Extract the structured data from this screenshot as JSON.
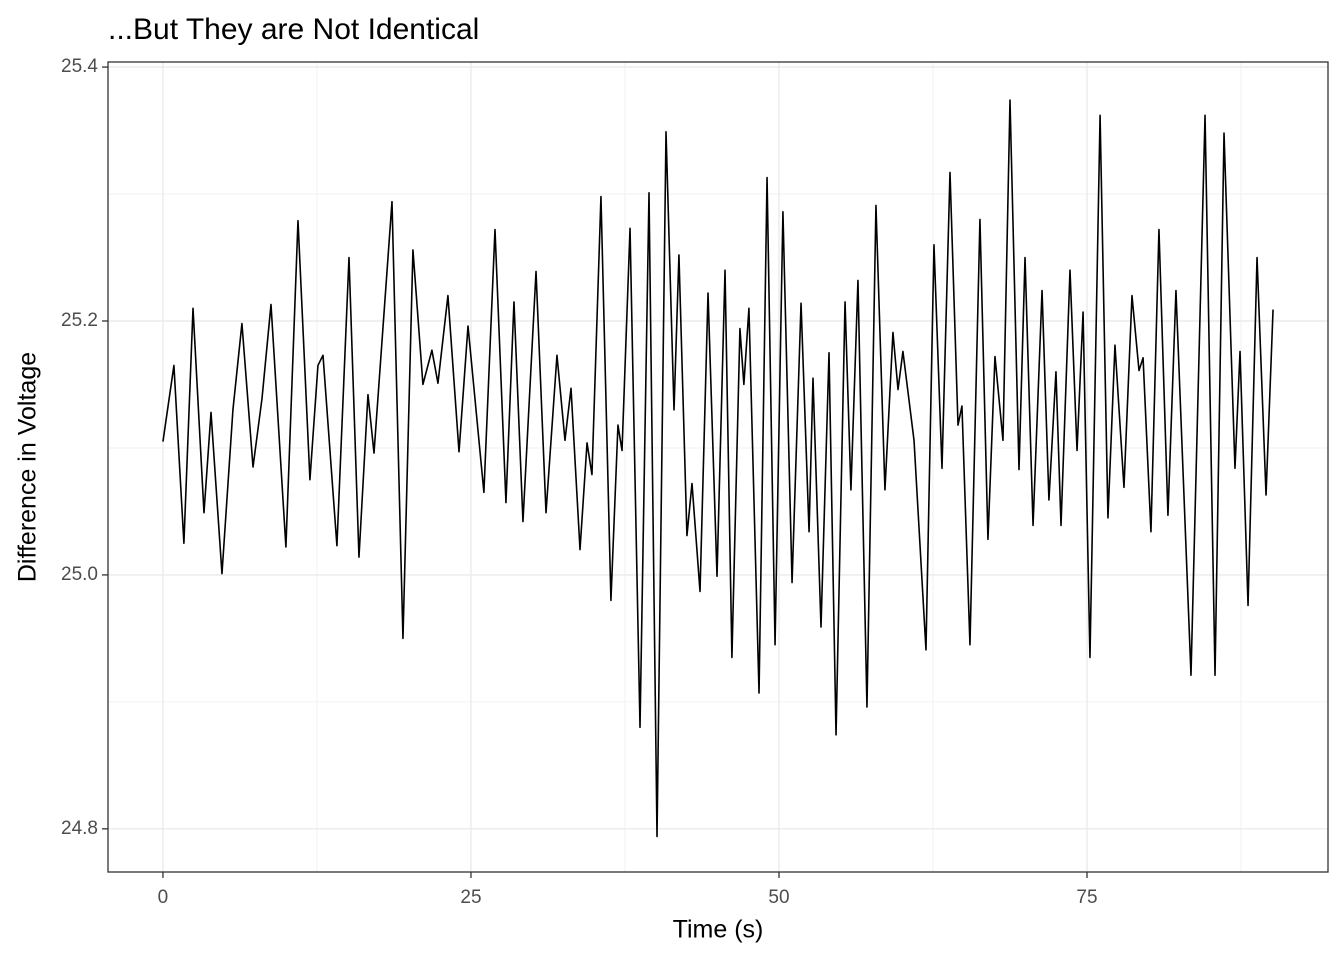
{
  "chart_data": {
    "type": "line",
    "title": "...But They are Not Identical",
    "x_label": "Time (s)",
    "y_label": "Difference in Voltage",
    "xlim": [
      -4.46,
      94.56
    ],
    "ylim": [
      24.766,
      25.404
    ],
    "xticks": [
      0,
      25,
      50,
      75
    ],
    "yticks": [
      24.8,
      {
        "value": 25,
        "label": "25.0"
      },
      25.2,
      25.4
    ],
    "x_minor_ticks": [
      12.5,
      37.5,
      62.5,
      87.5
    ],
    "y_minor_ticks": [
      24.9,
      25.1,
      25.3
    ],
    "grid": true,
    "series": [
      {
        "color": "#000000",
        "x": [
          0,
          0.89,
          1.7,
          2.44,
          3.33,
          3.9,
          4.79,
          5.68,
          6.41,
          7.31,
          8.04,
          8.77,
          9.98,
          10.96,
          11.93,
          12.58,
          12.99,
          14.12,
          15.1,
          15.91,
          16.64,
          17.13,
          18.59,
          19.48,
          20.29,
          21.1,
          21.83,
          22.32,
          23.13,
          24.03,
          24.76,
          26.05,
          26.95,
          27.84,
          28.49,
          29.22,
          30.28,
          31.09,
          31.98,
          32.63,
          33.12,
          33.85,
          34.42,
          34.82,
          35.55,
          36.36,
          36.93,
          37.26,
          37.91,
          38.72,
          39.45,
          40.1,
          40.83,
          41.48,
          41.88,
          42.53,
          42.94,
          43.59,
          44.24,
          44.97,
          45.62,
          46.18,
          46.83,
          47.15,
          47.56,
          48.38,
          49.03,
          49.68,
          50.32,
          51.06,
          51.79,
          52.44,
          52.76,
          53.41,
          54.06,
          54.63,
          55.36,
          55.84,
          56.41,
          57.14,
          57.87,
          58.6,
          59.25,
          59.66,
          60.06,
          60.96,
          61.93,
          62.58,
          63.23,
          63.88,
          64.53,
          64.85,
          65.5,
          66.31,
          66.96,
          67.53,
          68.18,
          68.75,
          69.48,
          69.97,
          70.62,
          71.35,
          71.91,
          72.48,
          72.89,
          73.62,
          74.19,
          74.68,
          75.24,
          76.06,
          76.7,
          77.27,
          78.0,
          78.65,
          79.22,
          79.55,
          80.19,
          80.84,
          81.57,
          82.22,
          83.44,
          84.58,
          85.39,
          86.12,
          87.01,
          87.42,
          88.07,
          88.8,
          89.53,
          90.1
        ],
        "values": [
          25.105,
          25.165,
          25.025,
          25.21,
          25.049,
          25.128,
          25.001,
          25.13,
          25.198,
          25.085,
          25.139,
          25.213,
          25.022,
          25.279,
          25.075,
          25.165,
          25.173,
          25.023,
          25.25,
          25.014,
          25.142,
          25.096,
          25.294,
          24.95,
          25.256,
          25.15,
          25.177,
          25.151,
          25.22,
          25.097,
          25.196,
          25.065,
          25.272,
          25.057,
          25.215,
          25.042,
          25.239,
          25.049,
          25.173,
          25.106,
          25.147,
          25.02,
          25.104,
          25.079,
          25.298,
          24.98,
          25.118,
          25.098,
          25.273,
          24.88,
          25.301,
          24.794,
          25.349,
          25.13,
          25.252,
          25.031,
          25.072,
          24.987,
          25.222,
          24.999,
          25.24,
          24.935,
          25.194,
          25.15,
          25.21,
          24.907,
          25.313,
          24.945,
          25.286,
          24.994,
          25.214,
          25.034,
          25.155,
          24.959,
          25.175,
          24.874,
          25.215,
          25.067,
          25.232,
          24.896,
          25.291,
          25.067,
          25.191,
          25.146,
          25.176,
          25.106,
          24.941,
          25.26,
          25.084,
          25.317,
          25.118,
          25.133,
          24.945,
          25.28,
          25.028,
          25.172,
          25.106,
          25.374,
          25.083,
          25.25,
          25.039,
          25.224,
          25.059,
          25.16,
          25.039,
          25.24,
          25.098,
          25.207,
          24.935,
          25.362,
          25.045,
          25.181,
          25.069,
          25.22,
          25.161,
          25.171,
          25.034,
          25.272,
          25.047,
          25.224,
          24.921,
          25.362,
          24.921,
          25.348,
          25.084,
          25.176,
          24.976,
          25.25,
          25.063,
          25.209
        ]
      }
    ]
  }
}
